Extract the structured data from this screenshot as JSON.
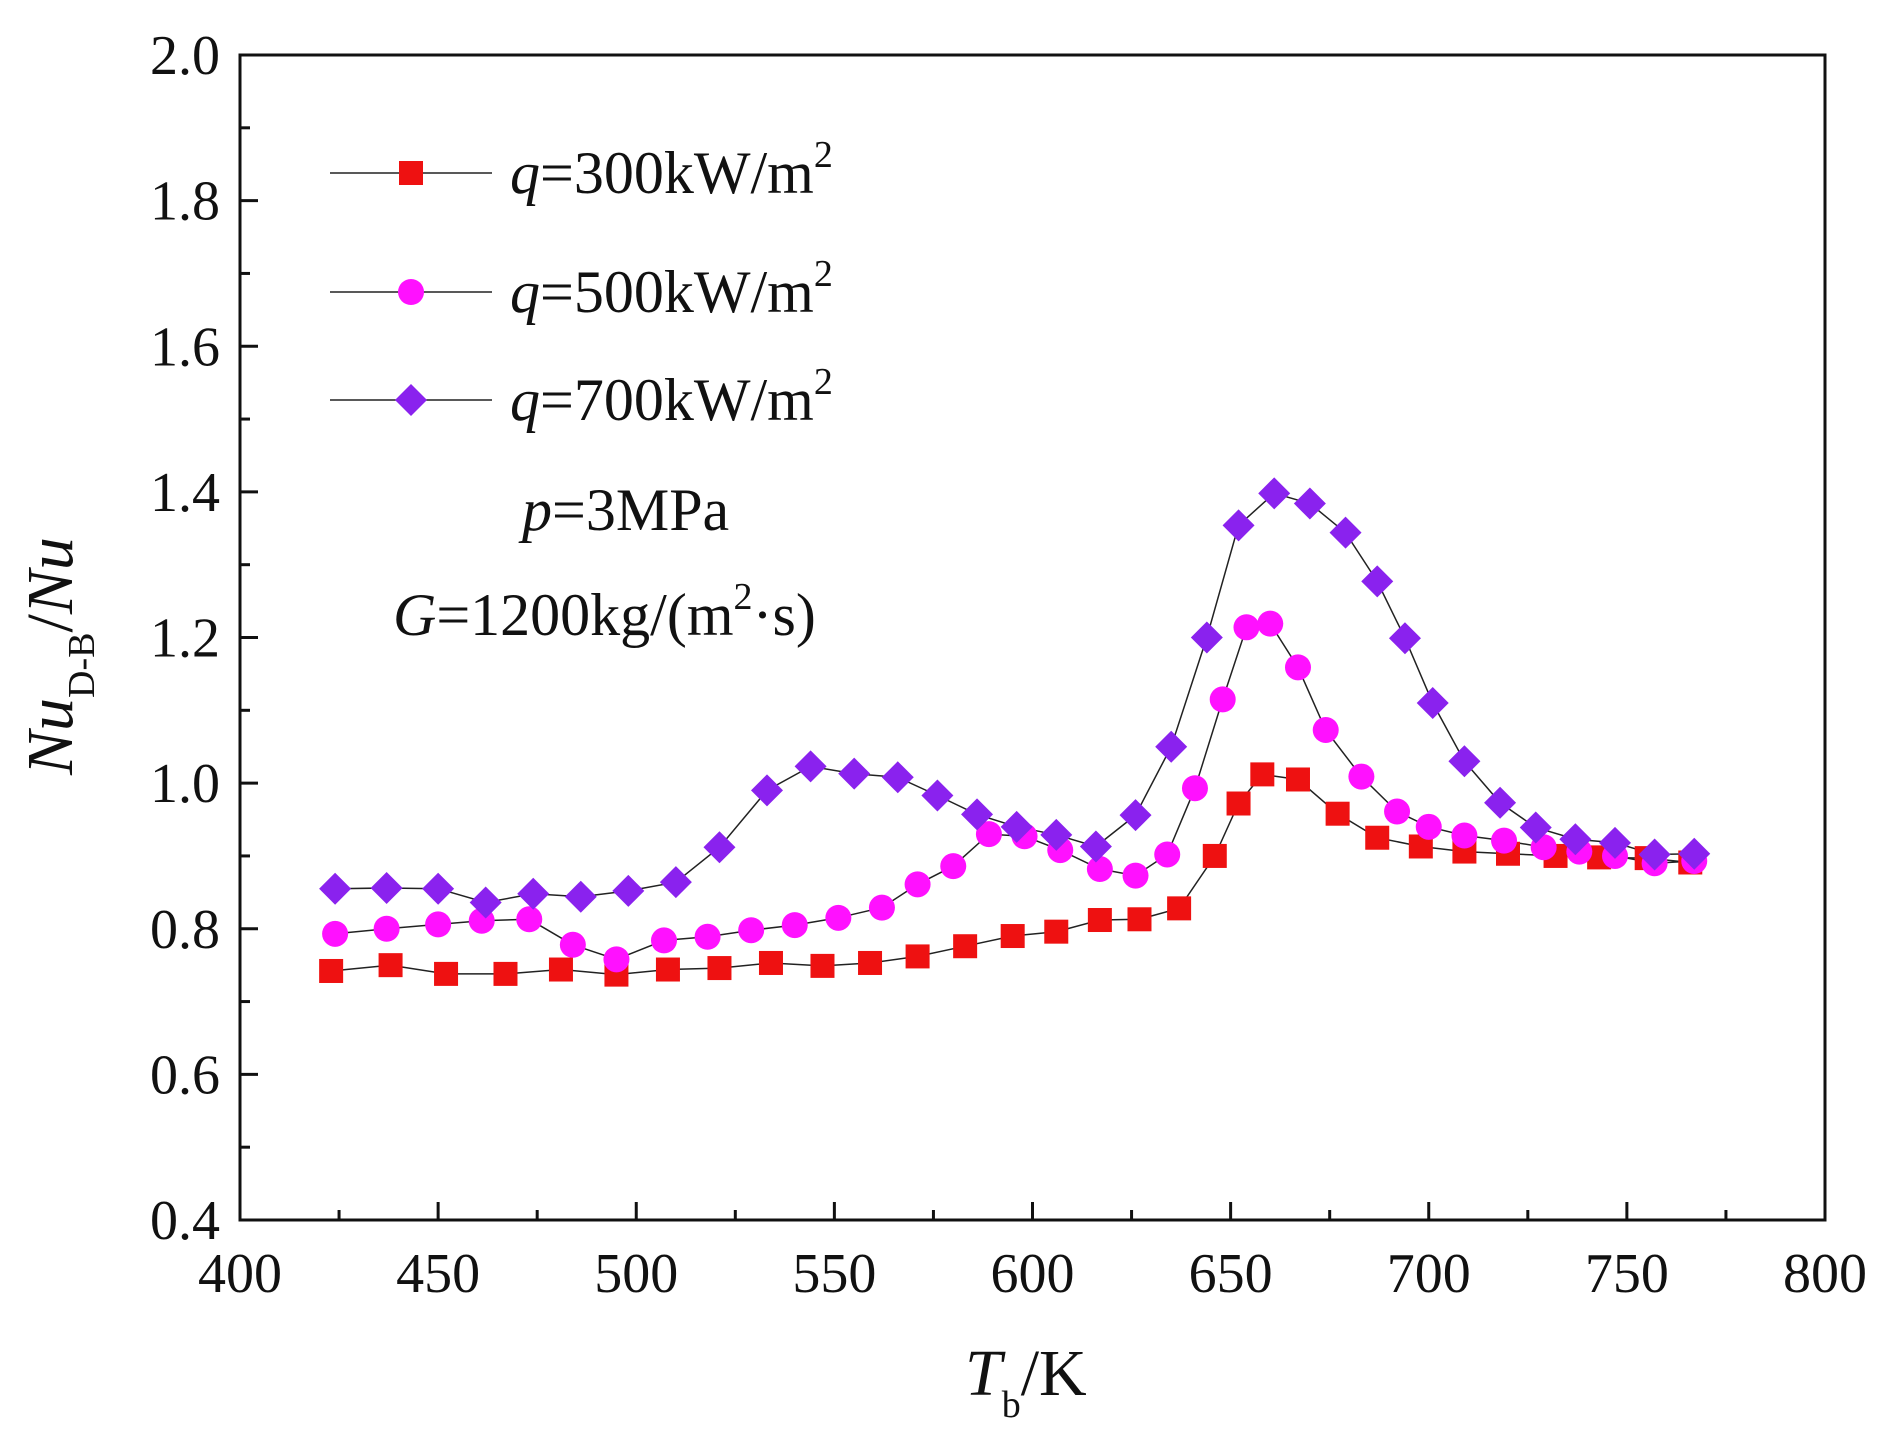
{
  "chart_data": {
    "type": "line",
    "title": "",
    "xlabel": {
      "var": "T",
      "sub": "b",
      "unit": "/K"
    },
    "ylabel": {
      "var": "Nu",
      "sub": "D-B",
      "over": "/",
      "den": "Nu"
    },
    "xlim": [
      400,
      800
    ],
    "ylim": [
      0.4,
      2.0
    ],
    "xticks": [
      "400",
      "450",
      "500",
      "550",
      "600",
      "650",
      "700",
      "750",
      "800"
    ],
    "xtick_values": [
      400,
      450,
      500,
      550,
      600,
      650,
      700,
      750,
      800
    ],
    "yticks": [
      "0.4",
      "0.6",
      "0.8",
      "1.0",
      "1.2",
      "1.4",
      "1.6",
      "1.8",
      "2.0"
    ],
    "ytick_values": [
      0.4,
      0.6,
      0.8,
      1.0,
      1.2,
      1.4,
      1.6,
      1.8,
      2.0
    ],
    "legend_position": "top-left",
    "series": [
      {
        "name": "q=300kW/m2",
        "label_var": "q",
        "label_text": "=300kW/m",
        "label_sup": "2",
        "marker": "square",
        "color": "#ee1111",
        "x": [
          423,
          438,
          452,
          467,
          481,
          495,
          508,
          521,
          534,
          547,
          559,
          571,
          583,
          595,
          606,
          617,
          627,
          637,
          646,
          652,
          658,
          667,
          677,
          687,
          698,
          709,
          720,
          732,
          743,
          755,
          766
        ],
        "y": [
          0.742,
          0.75,
          0.738,
          0.738,
          0.744,
          0.737,
          0.744,
          0.746,
          0.753,
          0.749,
          0.753,
          0.762,
          0.776,
          0.79,
          0.796,
          0.812,
          0.813,
          0.828,
          0.9,
          0.972,
          1.012,
          1.005,
          0.958,
          0.925,
          0.913,
          0.906,
          0.903,
          0.9,
          0.898,
          0.897,
          0.891
        ]
      },
      {
        "name": "q=500kW/m2",
        "label_var": "q",
        "label_text": "=500kW/m",
        "label_sup": "2",
        "marker": "circle",
        "color": "#ff11ff",
        "x": [
          424,
          437,
          450,
          461,
          473,
          484,
          495,
          507,
          518,
          529,
          540,
          551,
          562,
          571,
          580,
          589,
          598,
          607,
          617,
          626,
          634,
          641,
          648,
          654,
          660,
          667,
          674,
          683,
          692,
          700,
          709,
          719,
          729,
          738,
          747,
          757,
          767
        ],
        "y": [
          0.793,
          0.8,
          0.806,
          0.811,
          0.813,
          0.778,
          0.758,
          0.784,
          0.789,
          0.798,
          0.805,
          0.815,
          0.829,
          0.861,
          0.886,
          0.93,
          0.927,
          0.908,
          0.882,
          0.873,
          0.902,
          0.993,
          1.115,
          1.214,
          1.219,
          1.159,
          1.073,
          1.009,
          0.961,
          0.94,
          0.928,
          0.921,
          0.912,
          0.906,
          0.9,
          0.89,
          0.893
        ]
      },
      {
        "name": "q=700kW/m2",
        "label_var": "q",
        "label_text": "=700kW/m",
        "label_sup": "2",
        "marker": "diamond",
        "color": "#8a22ee",
        "x": [
          424,
          437,
          450,
          462,
          474,
          486,
          498,
          510,
          521,
          533,
          544,
          555,
          566,
          576,
          586,
          596,
          606,
          616,
          626,
          635,
          644,
          652,
          661,
          670,
          679,
          687,
          694,
          701,
          709,
          718,
          727,
          737,
          747,
          757,
          767
        ],
        "y": [
          0.855,
          0.856,
          0.855,
          0.836,
          0.848,
          0.844,
          0.852,
          0.864,
          0.912,
          0.99,
          1.023,
          1.013,
          1.008,
          0.983,
          0.957,
          0.94,
          0.929,
          0.913,
          0.956,
          1.05,
          1.2,
          1.354,
          1.398,
          1.384,
          1.344,
          1.277,
          1.199,
          1.11,
          1.03,
          0.973,
          0.939,
          0.923,
          0.918,
          0.902,
          0.903
        ]
      }
    ],
    "annotations": [
      {
        "var": "p",
        "text": "=3MPa"
      },
      {
        "var": "G",
        "text": "=1200kg/(m",
        "sup": "2",
        "tail": "·s)"
      }
    ]
  }
}
